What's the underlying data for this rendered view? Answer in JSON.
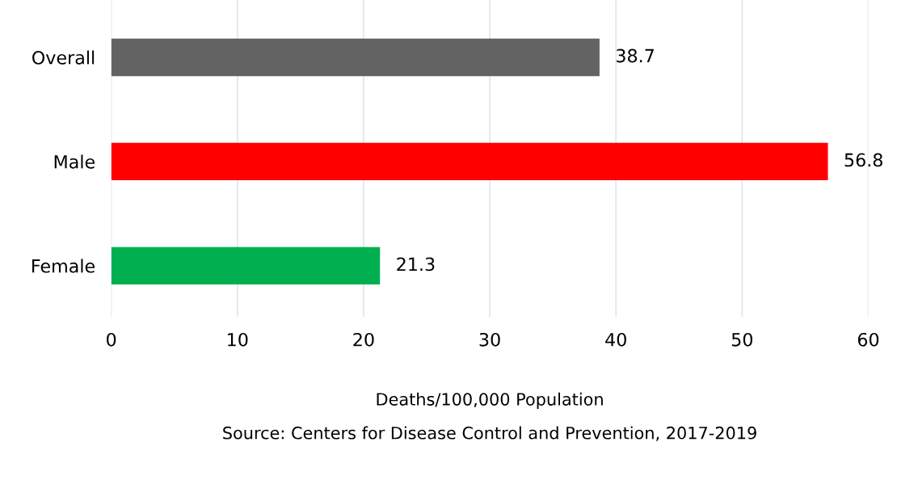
{
  "chart_data": {
    "type": "bar",
    "orientation": "horizontal",
    "categories": [
      "Overall",
      "Male",
      "Female"
    ],
    "values": [
      38.7,
      56.8,
      21.3
    ],
    "colors": [
      "#636363",
      "#ff0000",
      "#00b050"
    ],
    "data_labels": true,
    "xlim": [
      0,
      60
    ],
    "xticks": [
      0,
      10,
      20,
      30,
      40,
      50,
      60
    ],
    "grid": "x",
    "xlabel": "Deaths/100,000 Population",
    "annotations": [
      "Source: Centers for Disease Control and Prevention, 2017-2019"
    ]
  }
}
